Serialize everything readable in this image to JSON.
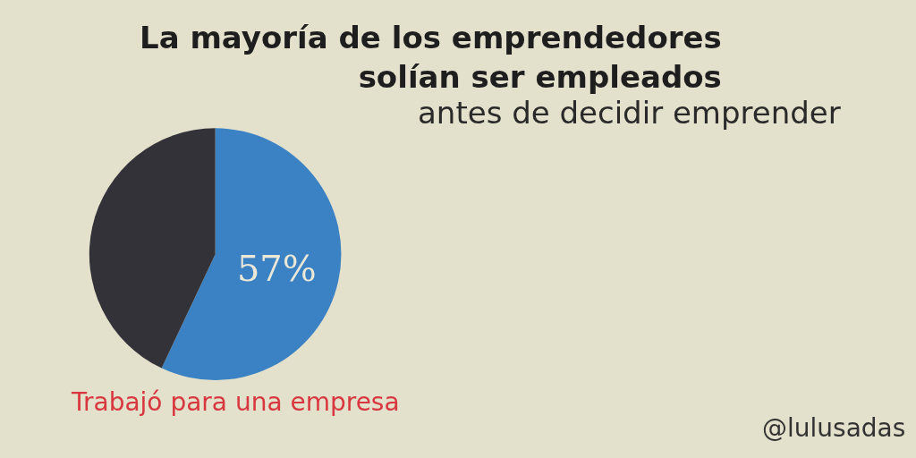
{
  "chart_data": {
    "type": "pie",
    "title": "La mayoría de los emprendedores\nsolían ser empleados",
    "subtitle": "antes de decidir emprender",
    "categories": [
      "Trabajó para una empresa",
      null
    ],
    "values": [
      57,
      43
    ],
    "colors": [
      "#3b82c4",
      "#333238"
    ],
    "value_labels": [
      "57%",
      null
    ],
    "legend": false,
    "annotations": [
      "@lulusadas"
    ]
  }
}
